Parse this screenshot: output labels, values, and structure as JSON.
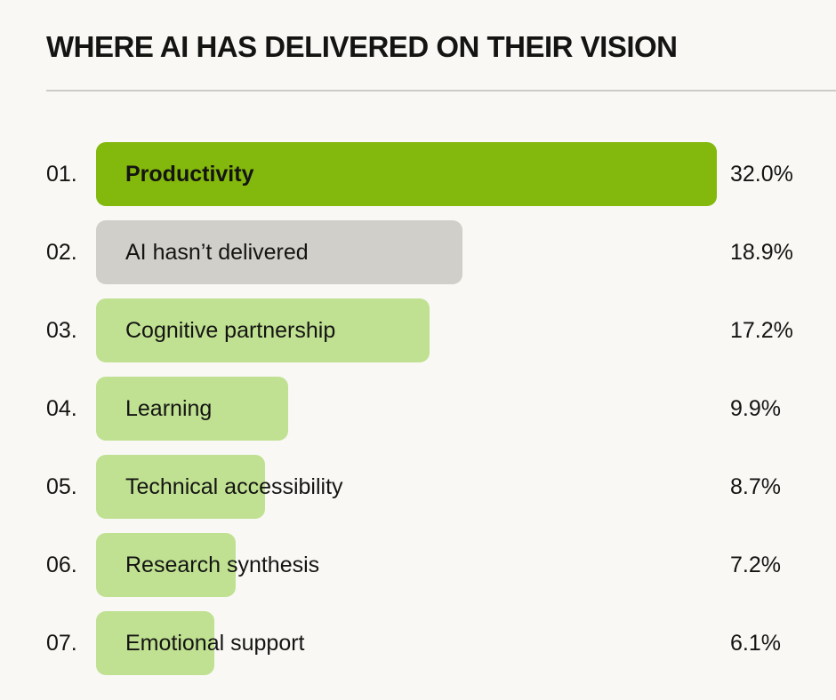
{
  "chart_data": {
    "type": "bar",
    "orientation": "horizontal",
    "title": "WHERE AI HAS DELIVERED ON THEIR VISION",
    "xlabel": "",
    "ylabel": "",
    "xlim": [
      0,
      32.0
    ],
    "value_suffix": "%",
    "colors": {
      "highlight": "#83b80c",
      "neutral": "#d1cfca",
      "default": "#c0e191"
    },
    "categories": [
      {
        "rank": "01.",
        "label": "Productivity",
        "value": 32.0,
        "display": "32.0%",
        "style": "highlight"
      },
      {
        "rank": "02.",
        "label": "AI hasn’t delivered",
        "value": 18.9,
        "display": "18.9%",
        "style": "neutral"
      },
      {
        "rank": "03.",
        "label": "Cognitive partnership",
        "value": 17.2,
        "display": "17.2%",
        "style": "default"
      },
      {
        "rank": "04.",
        "label": "Learning",
        "value": 9.9,
        "display": "9.9%",
        "style": "default"
      },
      {
        "rank": "05.",
        "label": "Technical accessibility",
        "value": 8.7,
        "display": "8.7%",
        "style": "default"
      },
      {
        "rank": "06.",
        "label": "Research synthesis",
        "value": 7.2,
        "display": "7.2%",
        "style": "default"
      },
      {
        "rank": "07.",
        "label": "Emotional support",
        "value": 6.1,
        "display": "6.1%",
        "style": "default"
      }
    ]
  }
}
